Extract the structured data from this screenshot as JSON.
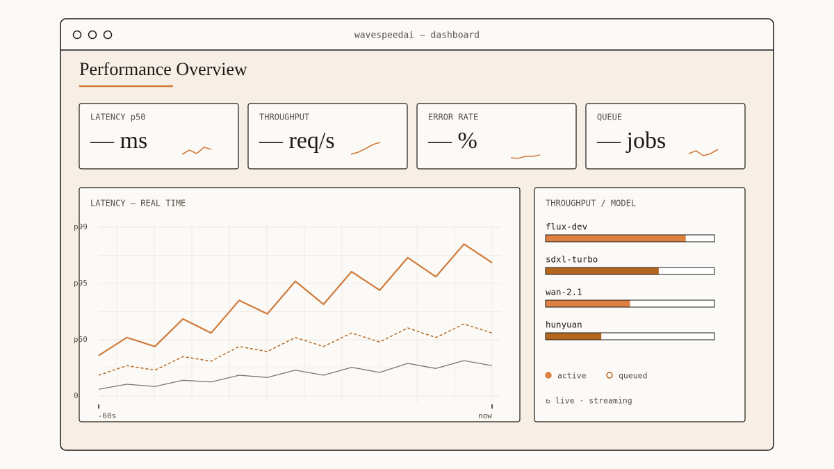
{
  "window": {
    "title": "wavespeedai — dashboard"
  },
  "page": {
    "title": "Performance Overview"
  },
  "cards": [
    {
      "label": "LATENCY p50",
      "value": "— ms",
      "spark": [
        5,
        8,
        5.5,
        10,
        8.5
      ]
    },
    {
      "label": "THROUGHPUT",
      "value": "— req/s",
      "spark": [
        5,
        6.5,
        9,
        12,
        13.5
      ]
    },
    {
      "label": "ERROR RATE",
      "value": "— %",
      "spark": [
        2.5,
        2,
        3.5,
        3.5,
        4.5
      ]
    },
    {
      "label": "QUEUE",
      "value": "— jobs",
      "spark": [
        5.5,
        7.5,
        4,
        5.5,
        8.5
      ]
    }
  ],
  "spark_ylim": [
    0,
    14
  ],
  "spark_color": "#d07a3c",
  "chart_data": [
    {
      "type": "line",
      "title": "LATENCY — REAL TIME",
      "categories": [
        "-60s",
        null,
        null,
        null,
        null,
        null,
        null,
        null,
        null,
        null,
        null,
        null,
        null,
        null,
        "now"
      ],
      "ylim": [
        0,
        3
      ],
      "yticks": [
        0,
        {
          "value": 1,
          "label": "p50"
        },
        {
          "value": 2,
          "label": "p95"
        },
        {
          "value": 3,
          "label": "p99"
        }
      ],
      "grid": true,
      "series": [
        {
          "color": "#d07a3c",
          "style": "solid",
          "values": [
            0.72,
            1.04,
            0.88,
            1.37,
            1.12,
            1.7,
            1.46,
            2.04,
            1.63,
            2.21,
            1.88,
            2.46,
            2.12,
            2.7,
            2.37
          ]
        },
        {
          "color": "#b5651d",
          "style": "dashed",
          "values": [
            0.37,
            0.54,
            0.46,
            0.7,
            0.62,
            0.88,
            0.79,
            1.04,
            0.88,
            1.12,
            0.96,
            1.21,
            1.04,
            1.28,
            1.12
          ]
        },
        {
          "color": "#7a7470",
          "style": "solid",
          "values": [
            0.12,
            0.21,
            0.17,
            0.28,
            0.25,
            0.37,
            0.33,
            0.46,
            0.37,
            0.51,
            0.42,
            0.58,
            0.49,
            0.63,
            0.54
          ]
        }
      ]
    },
    {
      "type": "hbar",
      "title": "THROUGHPUT / MODEL",
      "categories": [
        "flux-dev",
        "sdxl-turbo",
        "wan-2.1",
        "hunyuan"
      ],
      "values": [
        0.83,
        0.67,
        0.5,
        0.33
      ],
      "colors": [
        "#dd8040",
        "#b5651d",
        "#dd8040",
        "#b5651d"
      ],
      "xlim": [
        0,
        1
      ],
      "legend": [
        {
          "name": "active",
          "color": "#dd8040",
          "fill": true
        },
        {
          "name": "queued",
          "color": "#b5651d",
          "fill": false
        }
      ],
      "footer": "↻ live · streaming"
    }
  ]
}
